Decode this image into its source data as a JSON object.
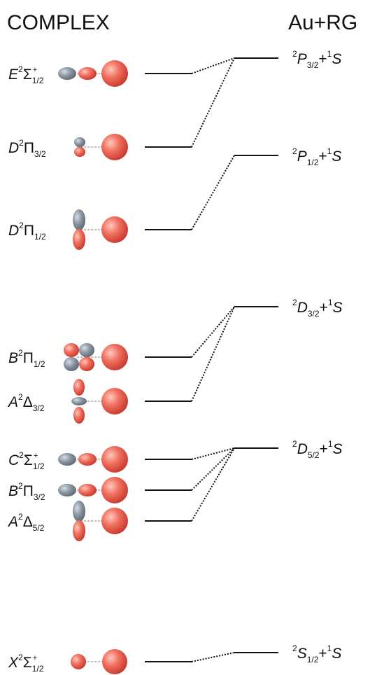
{
  "header": {
    "left": "COMPLEX",
    "right": "Au+RG"
  },
  "complex_states": [
    {
      "letter": "E",
      "sup": "2",
      "symbol": "Σ",
      "sub": "1/2",
      "sup2": "+"
    },
    {
      "letter": "D",
      "sup": "2",
      "symbol": "Π",
      "sub": "3/2"
    },
    {
      "letter": "D",
      "sup": "2",
      "symbol": "Π",
      "sub": "1/2"
    },
    {
      "letter": "B",
      "sup": "2",
      "symbol": "Π",
      "sub": "1/2"
    },
    {
      "letter": "A",
      "sup": "2",
      "symbol": "Δ",
      "sub": "3/2"
    },
    {
      "letter": "C",
      "sup": "2",
      "symbol": "Σ",
      "sub": "1/2",
      "sup2": "+"
    },
    {
      "letter": "B",
      "sup": "2",
      "symbol": "Π",
      "sub": "3/2"
    },
    {
      "letter": "A",
      "sup": "2",
      "symbol": "Δ",
      "sub": "5/2"
    },
    {
      "letter": "X",
      "sup": "2",
      "symbol": "Σ",
      "sub": "1/2",
      "sup2": "+"
    }
  ],
  "atomic_states": [
    {
      "sup": "2",
      "letter": "P",
      "sub": "3/2",
      "plus": "+",
      "sup2": "1",
      "letter2": "S"
    },
    {
      "sup": "2",
      "letter": "P",
      "sub": "1/2",
      "plus": "+",
      "sup2": "1",
      "letter2": "S"
    },
    {
      "sup": "2",
      "letter": "D",
      "sub": "3/2",
      "plus": "+",
      "sup2": "1",
      "letter2": "S"
    },
    {
      "sup": "2",
      "letter": "D",
      "sub": "5/2",
      "plus": "+",
      "sup2": "1",
      "letter2": "S"
    },
    {
      "sup": "2",
      "letter": "S",
      "sub": "1/2",
      "plus": "+",
      "sup2": "1",
      "letter2": "S"
    }
  ]
}
